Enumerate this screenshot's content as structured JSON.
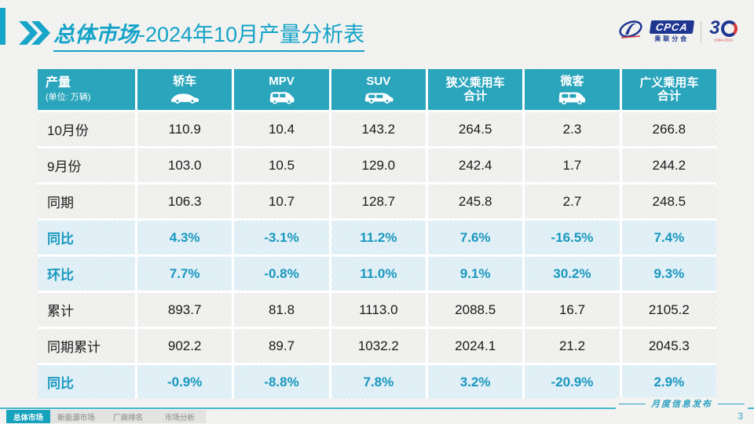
{
  "title": {
    "prefix": "总体市场",
    "suffix": "-2024年10月产量分析表"
  },
  "logo": {
    "cpca": "CPCA",
    "cpca_sub": "乘联分会",
    "anniversary": "3",
    "anniversary_years": "1994-2024"
  },
  "table": {
    "header": {
      "col0_title": "产量",
      "col0_sub": "(单位: 万辆)",
      "columns": [
        {
          "label": "轿车",
          "icon": "sedan-icon"
        },
        {
          "label": "MPV",
          "icon": "mpv-icon"
        },
        {
          "label": "SUV",
          "icon": "suv-icon"
        },
        {
          "label": "狭义乘用车",
          "label2": "合计"
        },
        {
          "label": "微客",
          "icon": "minibus-icon"
        },
        {
          "label": "广义乘用车",
          "label2": "合计"
        }
      ]
    },
    "rows": [
      {
        "label": "10月份",
        "highlight": false,
        "values": [
          "110.9",
          "10.4",
          "143.2",
          "264.5",
          "2.3",
          "266.8"
        ]
      },
      {
        "label": "9月份",
        "highlight": false,
        "values": [
          "103.0",
          "10.5",
          "129.0",
          "242.4",
          "1.7",
          "244.2"
        ]
      },
      {
        "label": "同期",
        "highlight": false,
        "values": [
          "106.3",
          "10.7",
          "128.7",
          "245.8",
          "2.7",
          "248.5"
        ]
      },
      {
        "label": "同比",
        "highlight": true,
        "values": [
          "4.3%",
          "-3.1%",
          "11.2%",
          "7.6%",
          "-16.5%",
          "7.4%"
        ]
      },
      {
        "label": "环比",
        "highlight": true,
        "values": [
          "7.7%",
          "-0.8%",
          "11.0%",
          "9.1%",
          "30.2%",
          "9.3%"
        ]
      },
      {
        "label": "累计",
        "highlight": false,
        "values": [
          "893.7",
          "81.8",
          "1113.0",
          "2088.5",
          "16.7",
          "2105.2"
        ]
      },
      {
        "label": "同期累计",
        "highlight": false,
        "values": [
          "902.2",
          "89.7",
          "1032.2",
          "2024.1",
          "21.2",
          "2045.3"
        ]
      },
      {
        "label": "同比",
        "highlight": true,
        "values": [
          "-0.9%",
          "-8.8%",
          "7.8%",
          "3.2%",
          "-20.9%",
          "2.9%"
        ]
      }
    ]
  },
  "watermark": {
    "line1": "CPCA",
    "line2": "乘联分会"
  },
  "footer": {
    "tabs": [
      {
        "label": "总体市场",
        "active": true
      },
      {
        "label": "新能源市场",
        "active": false
      },
      {
        "label": "厂商排名",
        "active": false
      },
      {
        "label": "市场分析",
        "active": false
      }
    ],
    "publication": "月度信息发布",
    "page_number": "3"
  },
  "colors": {
    "accent": "#14a3c8",
    "header_bg": "#2aa5bc",
    "highlight_bg": "#e2f0f7",
    "highlight_text": "#1898bf",
    "active_tab": "#17a2be"
  }
}
